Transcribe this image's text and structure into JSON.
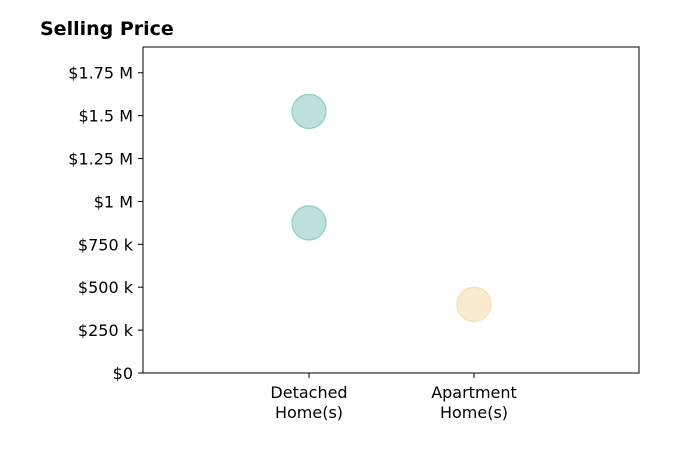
{
  "chart_data": {
    "type": "scatter",
    "title": "Selling Price",
    "xlabel": "",
    "ylabel": "",
    "categories": [
      "Detached Home(s)",
      "Apartment Home(s)"
    ],
    "category_label_lines": [
      [
        "Detached",
        "Home(s)"
      ],
      [
        "Apartment",
        "Home(s)"
      ]
    ],
    "y_ticks": [
      0,
      250000,
      500000,
      750000,
      1000000,
      1250000,
      1500000,
      1750000
    ],
    "y_tick_labels": [
      "$0",
      "$250 k",
      "$500 k",
      "$750 k",
      "$1 M",
      "$1.25 M",
      "$1.5 M",
      "$1.75 M"
    ],
    "ylim": [
      0,
      1900000
    ],
    "grid": false,
    "series": [
      {
        "category": "Detached Home(s)",
        "values": [
          1525000,
          875000
        ],
        "color": "#8fccc5"
      },
      {
        "category": "Apartment Home(s)",
        "values": [
          400000
        ],
        "color": "#f5deb0"
      }
    ]
  }
}
